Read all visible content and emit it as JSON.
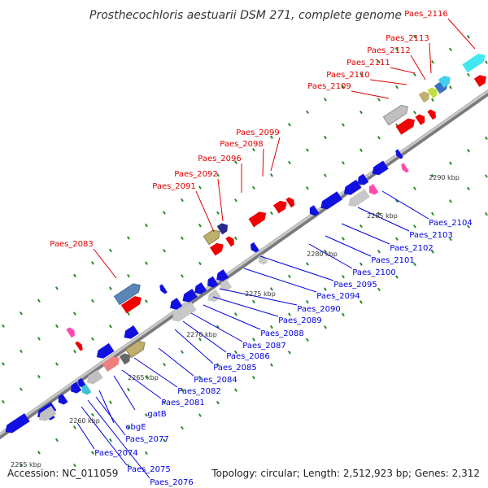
{
  "header": {
    "title": "Prosthecochloris aestuarii DSM 271, complete genome"
  },
  "footer": {
    "accession": "Accession: NC_011059",
    "topology": "Topology: circular; Length: 2,512,923 bp; Genes: 2,312"
  },
  "colors": {
    "backbone": "#a0a0a0",
    "forward_label": "#e00000",
    "reverse_label": "#0000e0",
    "grid": "#2a8a2a"
  },
  "ticks": [
    "2255 kbp",
    "2260 kbp",
    "2265 kbp",
    "2270 kbp",
    "2275 kbp",
    "2280 kbp",
    "2285 kbp",
    "2290 kbp"
  ],
  "forward_labels": [
    "Paes_2083",
    "Paes_2091",
    "Paes_2092",
    "Paes_2096",
    "Paes_2098",
    "Paes_2099",
    "Paes_2109",
    "Paes_2110",
    "Paes_2111",
    "Paes_2112",
    "Paes_2113",
    "Paes_2116"
  ],
  "reverse_labels": [
    "Paes_2074",
    "Paes_2075",
    "Paes_2076",
    "Paes_2077",
    "obgE",
    "gatB",
    "Paes_2081",
    "Paes_2082",
    "Paes_2084",
    "Paes_2085",
    "Paes_2086",
    "Paes_2087",
    "Paes_2088",
    "Paes_2089",
    "Paes_2090",
    "Paes_2094",
    "Paes_2095",
    "Paes_2100",
    "Paes_2101",
    "Paes_2102",
    "Paes_2103",
    "Paes_2104"
  ]
}
